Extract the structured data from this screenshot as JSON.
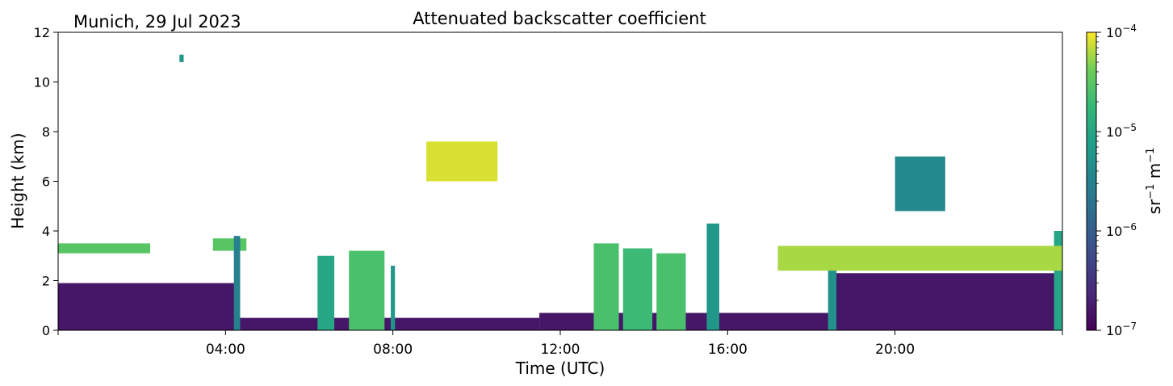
{
  "chart_data": {
    "type": "heatmap",
    "title": "Attenuated backscatter coefficient",
    "subtitle": "Munich, 29 Jul 2023",
    "xlabel": "Time (UTC)",
    "ylabel": "Height (km)",
    "xlim": [
      0,
      24
    ],
    "ylim": [
      0,
      12
    ],
    "x_ticks": [
      {
        "value": 4,
        "label": "04:00"
      },
      {
        "value": 8,
        "label": "08:00"
      },
      {
        "value": 12,
        "label": "12:00"
      },
      {
        "value": 16,
        "label": "16:00"
      },
      {
        "value": 20,
        "label": "20:00"
      }
    ],
    "y_ticks": [
      {
        "value": 0,
        "label": "0"
      },
      {
        "value": 2,
        "label": "2"
      },
      {
        "value": 4,
        "label": "4"
      },
      {
        "value": 6,
        "label": "6"
      },
      {
        "value": 8,
        "label": "8"
      },
      {
        "value": 10,
        "label": "10"
      },
      {
        "value": 12,
        "label": "12"
      }
    ],
    "colorbar": {
      "label_base": "sr",
      "label_exp1": "−1",
      "label_mid": " m",
      "label_exp2": "−1",
      "scale": "log",
      "range": [
        1e-07,
        0.0001
      ],
      "colormap": "viridis",
      "ticks": [
        {
          "value": 1e-07,
          "base": "10",
          "exp": "−7"
        },
        {
          "value": 1e-06,
          "base": "10",
          "exp": "−6"
        },
        {
          "value": 1e-05,
          "base": "10",
          "exp": "−5"
        },
        {
          "value": 0.0001,
          "base": "10",
          "exp": "−4"
        }
      ]
    },
    "regions": [
      {
        "name": "boundary-layer-aerosol",
        "x": [
          0.0,
          4.3
        ],
        "y": [
          0.0,
          1.9
        ],
        "level": 1.6e-07
      },
      {
        "name": "boundary-layer-aerosol",
        "x": [
          4.3,
          11.5
        ],
        "y": [
          0.0,
          0.5
        ],
        "level": 1.6e-07
      },
      {
        "name": "boundary-layer-aerosol",
        "x": [
          11.5,
          18.5
        ],
        "y": [
          0.0,
          0.7
        ],
        "level": 1.6e-07
      },
      {
        "name": "boundary-layer-aerosol",
        "x": [
          18.5,
          24.0
        ],
        "y": [
          0.0,
          2.3
        ],
        "level": 1.6e-07
      },
      {
        "name": "residual-layer",
        "x": [
          0.0,
          2.2
        ],
        "y": [
          3.1,
          3.5
        ],
        "level": 3e-05
      },
      {
        "name": "residual-layer",
        "x": [
          3.7,
          4.5
        ],
        "y": [
          3.2,
          3.7
        ],
        "level": 3e-05
      },
      {
        "name": "precip-column",
        "x": [
          4.2,
          4.35
        ],
        "y": [
          0.0,
          3.8
        ],
        "level": 3e-06
      },
      {
        "name": "precip-column",
        "x": [
          6.2,
          6.6
        ],
        "y": [
          0.0,
          3.0
        ],
        "level": 1e-05
      },
      {
        "name": "precip-column",
        "x": [
          6.95,
          7.8
        ],
        "y": [
          0.0,
          3.2
        ],
        "level": 2.5e-05
      },
      {
        "name": "precip-column",
        "x": [
          7.95,
          8.05
        ],
        "y": [
          0.0,
          2.6
        ],
        "level": 6e-06
      },
      {
        "name": "precip-column",
        "x": [
          12.8,
          13.4
        ],
        "y": [
          0.0,
          3.5
        ],
        "level": 2.5e-05
      },
      {
        "name": "precip-column",
        "x": [
          13.5,
          14.2
        ],
        "y": [
          0.0,
          3.3
        ],
        "level": 2e-05
      },
      {
        "name": "precip-column",
        "x": [
          14.3,
          15.0
        ],
        "y": [
          0.0,
          3.1
        ],
        "level": 2.5e-05
      },
      {
        "name": "precip-column",
        "x": [
          15.5,
          15.8
        ],
        "y": [
          0.0,
          4.3
        ],
        "level": 6e-06
      },
      {
        "name": "precip-column",
        "x": [
          18.4,
          18.6
        ],
        "y": [
          0.0,
          3.1
        ],
        "level": 5e-06
      },
      {
        "name": "precip-column",
        "x": [
          23.8,
          24.0
        ],
        "y": [
          0.0,
          4.0
        ],
        "level": 1e-05
      },
      {
        "name": "cloud-base",
        "x": [
          17.2,
          24.0
        ],
        "y": [
          2.4,
          3.4
        ],
        "level": 6e-05
      },
      {
        "name": "mid-cloud",
        "x": [
          20.0,
          21.2
        ],
        "y": [
          4.8,
          7.0
        ],
        "level": 4e-06
      },
      {
        "name": "high-cloud",
        "x": [
          8.8,
          10.5
        ],
        "y": [
          6.0,
          7.6
        ],
        "level": 8e-05
      },
      {
        "name": "high-cloud",
        "x": [
          2.9,
          3.0
        ],
        "y": [
          10.8,
          11.1
        ],
        "level": 6e-06
      }
    ]
  }
}
